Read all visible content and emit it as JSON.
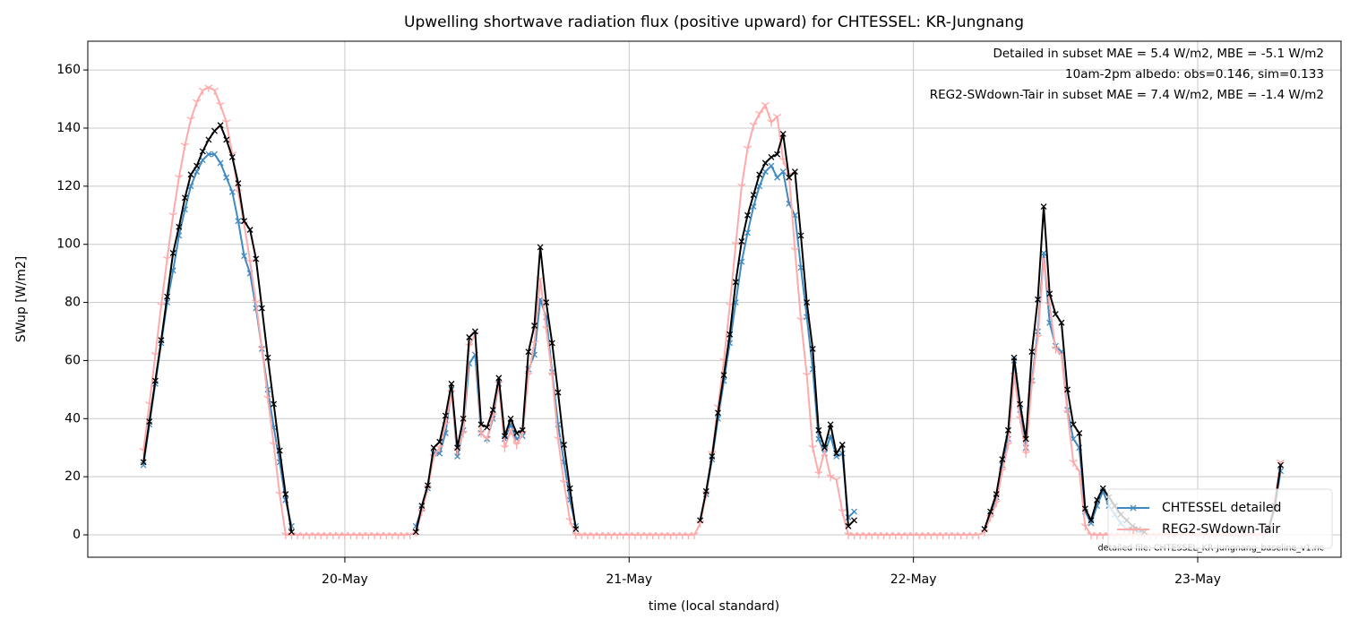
{
  "chart_data": {
    "type": "line",
    "title": "Upwelling shortwave radiation flux (positive upward) for CHTESSEL: KR-Jungnang",
    "x_label": "time (local standard)",
    "y_label": "SWup [W/m2]",
    "annotations": [
      {
        "text": "Detailed in subset MAE = 5.4 W/m2, MBE = -5.1 W/m2",
        "color": "#1f77b4"
      },
      {
        "text": "10am-2pm albedo: obs=0.146, sim=0.133",
        "color": "#000000"
      },
      {
        "text": "REG2-SWdown-Tair in subset MAE = 7.4 W/m2, MBE = -1.4 W/m2",
        "color": "#ff0000"
      }
    ],
    "footnote": "detailed file: CHTESSEL_KR-Jungnang_baseline_v1.nc",
    "xlim": [
      2.3,
      108.1
    ],
    "xticks": [
      {
        "value": 24,
        "label": "20-May"
      },
      {
        "value": 48,
        "label": "21-May"
      },
      {
        "value": 72,
        "label": "22-May"
      },
      {
        "value": 96,
        "label": "23-May"
      }
    ],
    "ylim": [
      -7.7,
      169.9
    ],
    "yticks": [
      0,
      20,
      40,
      60,
      80,
      100,
      120,
      140,
      160
    ],
    "grid": true,
    "legend": "lower right",
    "x": [
      7,
      7.5,
      8,
      8.5,
      9,
      9.5,
      10,
      10.5,
      11,
      11.5,
      12,
      12.5,
      13,
      13.5,
      14,
      14.5,
      15,
      15.5,
      16,
      16.5,
      17,
      17.5,
      18,
      18.5,
      19,
      19.5,
      20,
      20.5,
      21,
      21.5,
      22,
      22.5,
      23,
      23.5,
      24,
      24.5,
      25,
      25.5,
      26,
      26.5,
      27,
      27.5,
      28,
      28.5,
      29,
      29.5,
      30,
      30.5,
      31,
      31.5,
      32,
      32.5,
      33,
      33.5,
      34,
      34.5,
      35,
      35.5,
      36,
      36.5,
      37,
      37.5,
      38,
      38.5,
      39,
      39.5,
      40,
      40.5,
      41,
      41.5,
      42,
      42.5,
      43,
      43.5,
      44,
      44.5,
      45,
      45.5,
      46,
      46.5,
      47,
      47.5,
      48,
      48.5,
      49,
      49.5,
      50,
      50.5,
      51,
      51.5,
      52,
      52.5,
      53,
      53.5,
      54,
      54.5,
      55,
      55.5,
      56,
      56.5,
      57,
      57.5,
      58,
      58.5,
      59,
      59.5,
      60,
      60.5,
      61,
      61.5,
      62,
      62.5,
      63,
      63.5,
      64,
      64.5,
      65,
      65.5,
      66,
      66.5,
      67,
      67.5,
      68,
      68.5,
      69,
      69.5,
      70,
      70.5,
      71,
      71.5,
      72,
      72.5,
      73,
      73.5,
      74,
      74.5,
      75,
      75.5,
      76,
      76.5,
      77,
      77.5,
      78,
      78.5,
      79,
      79.5,
      80,
      80.5,
      81,
      81.5,
      82,
      82.5,
      83,
      83.5,
      84,
      84.5,
      85,
      85.5,
      86,
      86.5,
      87,
      87.5,
      88,
      88.5,
      89,
      89.5,
      90,
      90.5,
      91,
      91.5,
      92,
      92.5,
      93,
      93.5,
      94,
      94.5,
      95,
      95.5,
      96,
      96.5,
      97,
      97.5,
      98,
      98.5,
      99,
      99.5,
      100,
      100.5,
      101,
      101.5,
      102,
      102.5,
      103
    ],
    "series": [
      {
        "name": "CHTESSEL detailed",
        "color": "#3f8ac0",
        "marker": "x",
        "values": [
          24,
          38,
          52,
          66,
          80,
          91,
          103,
          112,
          120,
          125,
          129,
          131,
          131,
          128,
          123,
          118,
          108,
          96,
          90,
          78,
          64,
          50,
          37,
          25,
          12,
          3,
          null,
          null,
          null,
          null,
          null,
          null,
          null,
          null,
          null,
          null,
          null,
          null,
          null,
          null,
          null,
          null,
          null,
          null,
          null,
          null,
          3,
          9,
          16,
          28,
          28,
          35,
          50,
          27,
          36,
          59,
          62,
          35,
          33,
          40,
          52,
          33,
          38,
          33,
          34,
          57,
          62,
          81,
          75,
          56,
          38,
          25,
          12,
          3,
          null,
          null,
          null,
          null,
          null,
          null,
          null,
          null,
          null,
          null,
          null,
          null,
          null,
          null,
          null,
          null,
          null,
          null,
          null,
          null,
          5,
          14,
          26,
          40,
          53,
          66,
          80,
          94,
          104,
          113,
          120,
          125,
          127,
          123,
          125,
          114,
          110,
          92,
          75,
          57,
          33,
          28,
          34,
          27,
          28,
          6,
          8,
          null,
          null,
          null,
          null,
          null,
          null,
          null,
          null,
          null,
          null,
          null,
          null,
          null,
          null,
          null,
          null,
          null,
          null,
          null,
          null,
          null,
          2,
          7,
          13,
          24,
          33,
          60,
          43,
          30,
          53,
          70,
          97,
          73,
          65,
          63,
          43,
          33,
          30,
          8,
          4,
          10,
          15,
          10,
          7,
          4,
          2,
          2,
          1,
          1,
          null,
          null,
          null,
          null,
          null,
          null,
          null,
          null,
          null,
          null,
          null,
          null,
          null,
          null,
          null,
          null,
          null,
          null,
          null,
          null,
          2,
          9,
          22
        ]
      },
      {
        "name": "REG2-SWdown-Tair",
        "color": "#ffaaaa",
        "marker": "tri_down",
        "values": [
          29,
          45,
          62,
          79,
          95,
          110,
          123,
          134,
          143,
          149,
          153,
          154,
          153,
          148,
          142,
          131,
          118,
          107,
          94,
          80,
          64,
          47,
          31,
          14,
          0,
          0,
          0,
          0,
          0,
          0,
          0,
          0,
          0,
          0,
          0,
          0,
          0,
          0,
          0,
          0,
          0,
          0,
          0,
          0,
          0,
          0,
          1,
          8,
          16,
          27,
          30,
          38,
          49,
          29,
          35,
          65,
          69,
          35,
          33,
          41,
          52,
          30,
          36,
          31,
          35,
          55,
          66,
          88,
          71,
          55,
          33,
          18,
          5,
          0,
          0,
          0,
          0,
          0,
          0,
          0,
          0,
          0,
          0,
          0,
          0,
          0,
          0,
          0,
          0,
          0,
          0,
          0,
          0,
          0,
          4,
          14,
          28,
          44,
          60,
          79,
          100,
          120,
          133,
          141,
          145,
          148,
          142,
          144,
          129,
          124,
          98,
          74,
          55,
          30,
          21,
          29,
          20,
          19,
          8,
          0,
          0,
          0,
          0,
          0,
          0,
          0,
          0,
          0,
          0,
          0,
          0,
          0,
          0,
          0,
          0,
          0,
          0,
          0,
          0,
          0,
          0,
          0,
          1,
          6,
          11,
          22,
          31,
          55,
          40,
          28,
          52,
          68,
          95,
          79,
          64,
          62,
          42,
          25,
          22,
          3,
          0,
          0,
          0,
          0,
          0,
          0,
          0,
          0,
          0,
          0,
          0,
          0,
          0,
          0,
          0,
          0,
          0,
          0,
          0,
          0,
          0,
          0,
          0,
          0,
          0,
          0,
          0,
          0,
          0,
          0,
          3,
          12,
          25
        ]
      },
      {
        "color": "#000000",
        "marker": "x",
        "values": [
          25,
          39,
          53,
          67,
          82,
          97,
          106,
          116,
          124,
          127,
          132,
          136,
          139,
          141,
          136,
          130,
          121,
          108,
          105,
          95,
          78,
          61,
          45,
          29,
          14,
          1,
          null,
          null,
          null,
          null,
          null,
          null,
          null,
          null,
          null,
          null,
          null,
          null,
          null,
          null,
          null,
          null,
          null,
          null,
          null,
          null,
          1,
          10,
          17,
          30,
          32,
          41,
          52,
          30,
          40,
          68,
          70,
          38,
          37,
          43,
          54,
          34,
          40,
          35,
          36,
          63,
          72,
          99,
          80,
          66,
          49,
          31,
          16,
          2,
          null,
          null,
          null,
          null,
          null,
          null,
          null,
          null,
          null,
          null,
          null,
          null,
          null,
          null,
          null,
          null,
          null,
          null,
          null,
          null,
          5,
          15,
          27,
          42,
          55,
          69,
          87,
          101,
          110,
          117,
          124,
          128,
          130,
          131,
          138,
          123,
          125,
          103,
          80,
          64,
          36,
          30,
          38,
          28,
          31,
          3,
          5,
          null,
          null,
          null,
          null,
          null,
          null,
          null,
          null,
          null,
          null,
          null,
          null,
          null,
          null,
          null,
          null,
          null,
          null,
          null,
          null,
          null,
          2,
          8,
          14,
          26,
          36,
          61,
          45,
          33,
          63,
          81,
          113,
          83,
          76,
          73,
          50,
          38,
          35,
          9,
          5,
          12,
          16,
          13,
          10,
          7,
          5,
          3,
          2,
          1,
          null,
          null,
          null,
          null,
          null,
          null,
          null,
          null,
          null,
          null,
          null,
          null,
          null,
          null,
          null,
          null,
          null,
          null,
          null,
          null,
          2,
          10,
          24
        ]
      }
    ]
  }
}
